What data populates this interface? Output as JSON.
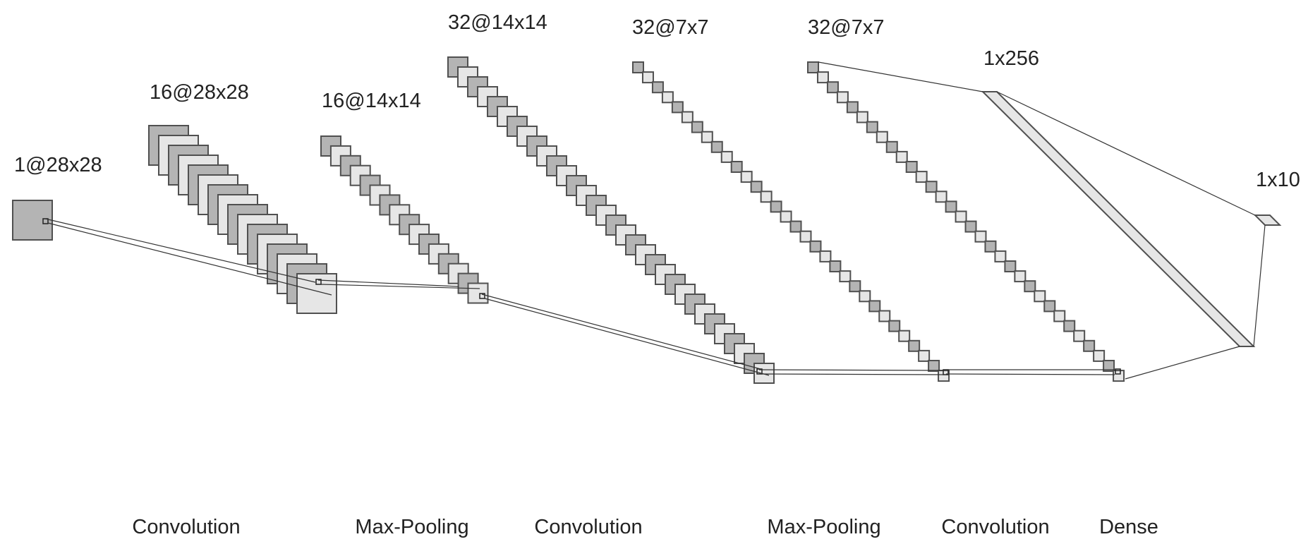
{
  "diagram": {
    "layers": [
      {
        "id": "input",
        "label": "1@28x28"
      },
      {
        "id": "conv1",
        "label": "16@28x28"
      },
      {
        "id": "pool1",
        "label": "16@14x14"
      },
      {
        "id": "conv2",
        "label": "32@14x14"
      },
      {
        "id": "pool2",
        "label": "32@7x7"
      },
      {
        "id": "conv3",
        "label": "32@7x7"
      },
      {
        "id": "dense1",
        "label": "1x256"
      },
      {
        "id": "dense2",
        "label": "1x10"
      }
    ],
    "operations": [
      {
        "id": "op1",
        "label": "Convolution"
      },
      {
        "id": "op2",
        "label": "Max-Pooling"
      },
      {
        "id": "op3",
        "label": "Convolution"
      },
      {
        "id": "op4",
        "label": "Max-Pooling"
      },
      {
        "id": "op5",
        "label": "Convolution"
      },
      {
        "id": "op6",
        "label": "Dense"
      }
    ],
    "colors": {
      "dark": "#b4b4b4",
      "light": "#e6e6e6",
      "stroke": "#505050",
      "line": "#333333"
    }
  }
}
